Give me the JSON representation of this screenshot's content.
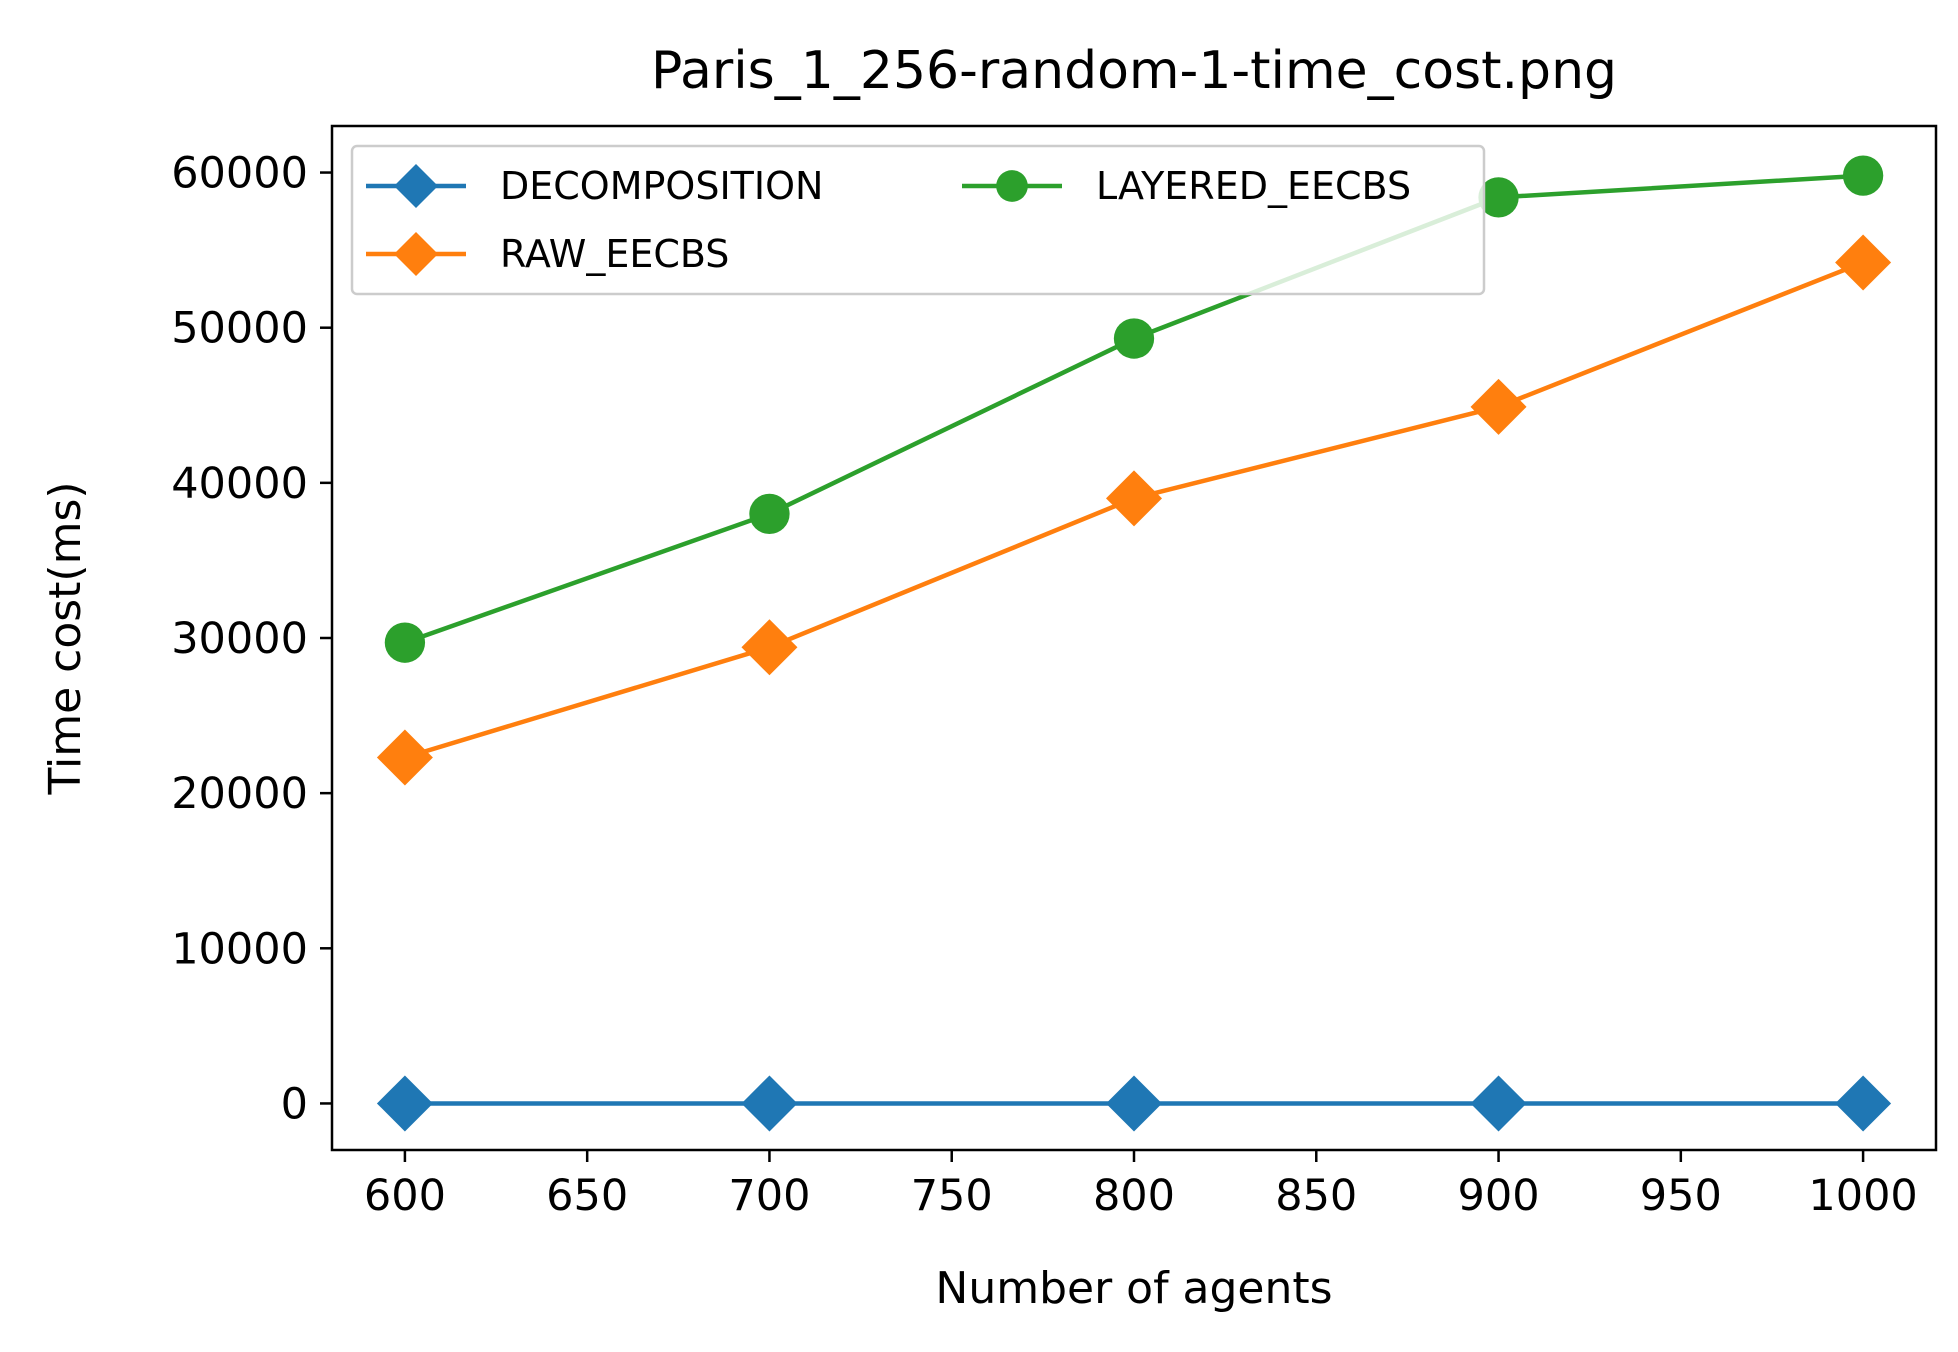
{
  "chart_data": {
    "type": "line",
    "title": "Paris_1_256-random-1-time_cost.png",
    "xlabel": "Number of agents",
    "ylabel": "Time cost(ms)",
    "x": [
      600,
      700,
      800,
      900,
      1000
    ],
    "xlim": [
      580,
      1020
    ],
    "ylim": [
      -3000,
      63000
    ],
    "xticks": [
      600,
      650,
      700,
      750,
      800,
      850,
      900,
      950,
      1000
    ],
    "yticks": [
      0,
      10000,
      20000,
      30000,
      40000,
      50000,
      60000
    ],
    "grid": false,
    "legend_position": "top-left",
    "legend_columns": 2,
    "series": [
      {
        "name": "DECOMPOSITION",
        "color": "#1f77b4",
        "marker": "diamond",
        "values": [
          0,
          0,
          0,
          0,
          0
        ]
      },
      {
        "name": "RAW_EECBS",
        "color": "#ff7f0e",
        "marker": "diamond",
        "values": [
          22300,
          29400,
          39000,
          44900,
          54200
        ]
      },
      {
        "name": "LAYERED_EECBS",
        "color": "#2ca02c",
        "marker": "circle",
        "values": [
          29700,
          38000,
          49300,
          58400,
          59800
        ]
      }
    ]
  }
}
